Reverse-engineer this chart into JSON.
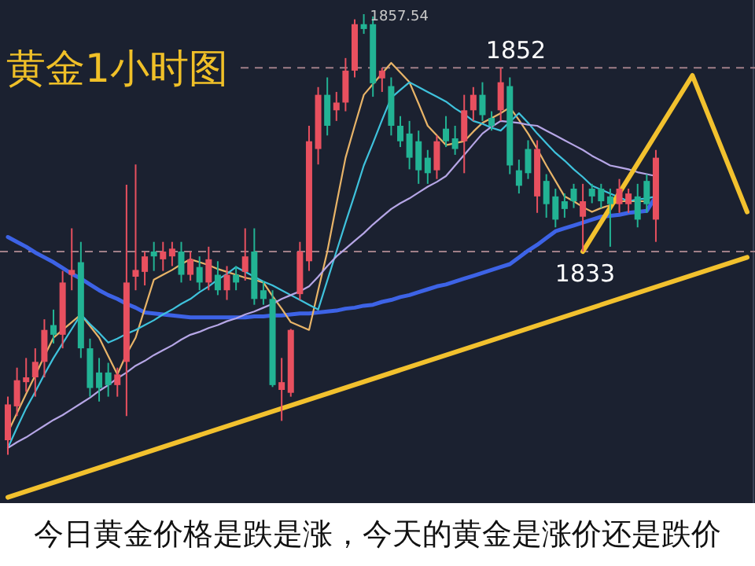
{
  "chart_data": {
    "type": "candlestick",
    "title": "黄金1小时图",
    "categories": [
      null,
      null,
      null,
      null,
      null,
      null,
      null,
      null,
      null,
      null,
      null,
      null,
      null,
      null,
      null,
      null,
      null,
      null,
      null,
      null,
      null,
      null,
      null,
      null,
      null,
      null,
      null,
      null,
      null,
      null,
      null,
      null,
      null,
      null,
      null,
      null,
      null,
      null,
      null,
      null,
      null,
      null,
      null,
      null,
      null,
      null,
      null,
      null,
      null,
      null,
      null,
      null,
      null,
      null,
      null,
      null,
      null,
      null,
      null,
      null,
      null,
      null,
      null,
      null,
      null,
      null,
      null,
      null,
      null,
      null,
      null,
      null,
      null,
      null,
      null,
      null,
      null,
      null,
      null,
      null,
      null,
      null
    ],
    "ohlc": [
      [
        1813.5,
        1818,
        1812,
        1817.2
      ],
      [
        1817,
        1821,
        1816,
        1819.7
      ],
      [
        1819.5,
        1822,
        1818.5,
        1820
      ],
      [
        1820,
        1823,
        1818,
        1821.6
      ],
      [
        1821.6,
        1826,
        1820,
        1824.9
      ],
      [
        1825.4,
        1827,
        1823.5,
        1824.4
      ],
      [
        1824.4,
        1831,
        1823,
        1829.8
      ],
      [
        1830.6,
        1835.4,
        1829,
        1831.1
      ],
      [
        1831.9,
        1834,
        1822,
        1823
      ],
      [
        1823,
        1824,
        1818,
        1818.9
      ],
      [
        1820.5,
        1822,
        1817.5,
        1818.9
      ],
      [
        1820.5,
        1821.5,
        1818,
        1819.2
      ],
      [
        1819.2,
        1821,
        1818,
        1820.3
      ],
      [
        1821.6,
        1839.9,
        1816,
        1829.8
      ],
      [
        1830.4,
        1842,
        1829,
        1831.1
      ],
      [
        1830.9,
        1833,
        1829.5,
        1832.5
      ],
      [
        1833,
        1834,
        1831,
        1832.5
      ],
      [
        1832.2,
        1834,
        1831,
        1833
      ],
      [
        1832.5,
        1834,
        1831.5,
        1833.3
      ],
      [
        1833,
        1834,
        1829.8,
        1830.6
      ],
      [
        1830.6,
        1833,
        1830,
        1832.2
      ],
      [
        1831.4,
        1832.5,
        1829,
        1829.8
      ],
      [
        1829.8,
        1833.5,
        1829,
        1832.2
      ],
      [
        1830.6,
        1832,
        1828.5,
        1829
      ],
      [
        1829,
        1831.5,
        1828,
        1830.6
      ],
      [
        1830.6,
        1831.5,
        1829,
        1829.8
      ],
      [
        1830.9,
        1835.4,
        1830,
        1832.5
      ],
      [
        1833,
        1835.4,
        1827.5,
        1828.1
      ],
      [
        1829,
        1830,
        1827.5,
        1828.1
      ],
      [
        1828.1,
        1829,
        1819,
        1819.2
      ],
      [
        1818.7,
        1822,
        1815.5,
        1819.5
      ],
      [
        1818.4,
        1825,
        1818,
        1824.9
      ],
      [
        1828.6,
        1834,
        1828,
        1833
      ],
      [
        1832,
        1846,
        1831,
        1844.4
      ],
      [
        1843.6,
        1850,
        1842,
        1849.2
      ],
      [
        1849.2,
        1851,
        1845,
        1846
      ],
      [
        1847.6,
        1849.5,
        1846.5,
        1848.4
      ],
      [
        1848.4,
        1853,
        1847.5,
        1851.7
      ],
      [
        1851.7,
        1857,
        1851,
        1856.5
      ],
      [
        1856.5,
        1857.54,
        1855.5,
        1856
      ],
      [
        1856.5,
        1857.3,
        1849,
        1850.4
      ],
      [
        1850.9,
        1852,
        1849.5,
        1851.7
      ],
      [
        1850.1,
        1851,
        1845,
        1846
      ],
      [
        1846,
        1847,
        1843.8,
        1844.4
      ],
      [
        1845.2,
        1846.5,
        1841.5,
        1842.7
      ],
      [
        1844.4,
        1845.5,
        1840,
        1841.4
      ],
      [
        1842.7,
        1843.5,
        1840,
        1841.1
      ],
      [
        1841.4,
        1845,
        1840.5,
        1844.4
      ],
      [
        1845.7,
        1847,
        1843.8,
        1844.4
      ],
      [
        1844.7,
        1846,
        1843,
        1843.6
      ],
      [
        1844.4,
        1849.2,
        1841.1,
        1847.6
      ],
      [
        1847.6,
        1850,
        1846.5,
        1849.2
      ],
      [
        1849.2,
        1850.5,
        1846.5,
        1847.1
      ],
      [
        1846.8,
        1847.5,
        1845.5,
        1846
      ],
      [
        1847.6,
        1852,
        1846.5,
        1850.5
      ],
      [
        1850.1,
        1851,
        1841,
        1841.9
      ],
      [
        1841.4,
        1842.5,
        1839,
        1839.8
      ],
      [
        1843.6,
        1844.5,
        1840.5,
        1841.1
      ],
      [
        1838.7,
        1844.5,
        1837,
        1843.6
      ],
      [
        1840.3,
        1841,
        1836.5,
        1837.9
      ],
      [
        1838.7,
        1839.5,
        1835.5,
        1836.3
      ],
      [
        1838.2,
        1839,
        1836.5,
        1837.4
      ],
      [
        1839.5,
        1840,
        1837.5,
        1838.2
      ],
      [
        1836.6,
        1840,
        1833,
        1838.2
      ],
      [
        1839.5,
        1840,
        1838,
        1838.7
      ],
      [
        1839.5,
        1840,
        1837.5,
        1838.2
      ],
      [
        1838.7,
        1839.5,
        1833.5,
        1837.9
      ],
      [
        1837.9,
        1840.5,
        1837,
        1839.5
      ],
      [
        1837.9,
        1839.5,
        1837,
        1839
      ],
      [
        1838.7,
        1840,
        1835.5,
        1836.3
      ],
      [
        1840.3,
        1841,
        1837,
        1837.9
      ],
      [
        1836.3,
        1843.5,
        1834,
        1842.7
      ],
      null,
      null,
      null,
      null,
      null,
      null,
      null,
      null,
      null,
      null
    ],
    "colors": [
      "#e8505f",
      "#e8505f",
      "#e8505f",
      "#e8505f",
      "#e8505f",
      "#22b394",
      "#e8505f",
      "#e8505f",
      "#22b394",
      "#22b394",
      "#22b394",
      "#22b394",
      "#e8505f",
      "#e8505f",
      "#e8505f",
      "#e8505f",
      "#22b394",
      "#e8505f",
      "#e8505f",
      "#22b394",
      "#e8505f",
      "#22b394",
      "#e8505f",
      "#22b394",
      "#e8505f",
      "#22b394",
      "#e8505f",
      "#22b394",
      "#22b394",
      "#22b394",
      "#e8505f",
      "#e8505f",
      "#e8505f",
      "#e8505f",
      "#e8505f",
      "#22b394",
      "#e8505f",
      "#e8505f",
      "#e8505f",
      "#22b394",
      "#22b394",
      "#e8505f",
      "#22b394",
      "#22b394",
      "#22b394",
      "#22b394",
      "#22b394",
      "#e8505f",
      "#22b394",
      "#22b394",
      "#e8505f",
      "#e8505f",
      "#22b394",
      "#22b394",
      "#e8505f",
      "#22b394",
      "#22b394",
      "#22b394",
      "#e8505f",
      "#22b394",
      "#22b394",
      "#22b394",
      "#22b394",
      "#e8505f",
      "#22b394",
      "#22b394",
      "#22b394",
      "#e8505f",
      "#e8505f",
      "#22b394",
      "#22b394",
      "#e8505f",
      null,
      null,
      null,
      null,
      null,
      null,
      null,
      null,
      null,
      null
    ],
    "series": [
      {
        "type": "line",
        "color": "#3d63e6",
        "values": [
          1834.5,
          1834.0,
          1833.5,
          1832.9,
          1832.4,
          1831.9,
          1831.3,
          1830.7,
          1830.2,
          1829.6,
          1829.0,
          1828.5,
          1828.1,
          1827.6,
          1827.2,
          1826.7,
          1826.6,
          1826.5,
          1826.4,
          1826.3,
          1826.2,
          1826.2,
          1826.2,
          1826.2,
          1826.2,
          1826.2,
          1826.2,
          1826.3,
          1826.3,
          1826.4,
          1826.4,
          1826.5,
          1826.6,
          1826.6,
          1826.7,
          1826.8,
          1826.9,
          1827.1,
          1827.2,
          1827.4,
          1827.5,
          1827.8,
          1828.0,
          1828.3,
          1828.5,
          1828.8,
          1829.1,
          1829.4,
          1829.6,
          1829.9,
          1830.2,
          1830.5,
          1830.8,
          1831.1,
          1831.4,
          1831.7,
          1832.4,
          1833.1,
          1833.7,
          1834.4,
          1835.1,
          1835.4,
          1835.7,
          1836.0,
          1836.3,
          1836.6,
          1836.7,
          1836.8,
          1837.0,
          1837.1,
          1837.2,
          1838.7,
          null,
          null,
          null,
          null,
          null,
          null,
          null,
          null,
          null,
          null
        ]
      },
      {
        "type": "line",
        "color": "#e8b468",
        "values": [
          1814.3,
          1816.3,
          1818.3,
          1820.2,
          1822.2,
          1824.1,
          1824.9,
          1825.7,
          1826.5,
          1825.3,
          1824.1,
          1822.2,
          1820.3,
          1822.4,
          1824.1,
          1827.1,
          1830.1,
          1830.6,
          1831.1,
          1831.7,
          1832.2,
          1831.9,
          1831.6,
          1831.2,
          1830.9,
          1830.6,
          1830.3,
          1830.1,
          1829.8,
          1828.4,
          1827.1,
          1825.7,
          1825.3,
          1824.9,
          1829.0,
          1833.0,
          1837.9,
          1842.7,
          1846.0,
          1849.2,
          1850.3,
          1851.4,
          1852.5,
          1851.5,
          1850.5,
          1848.3,
          1846.0,
          1845.0,
          1844.0,
          1844.2,
          1844.4,
          1845.4,
          1846.3,
          1846.8,
          1847.3,
          1847.9,
          1846.6,
          1845.2,
          1843.6,
          1841.9,
          1840.3,
          1838.7,
          1838.2,
          1837.6,
          1837.1,
          1837.5,
          1837.8,
          1838.2,
          1838.2,
          1838.2,
          1838.2,
          null,
          null,
          null,
          null,
          null,
          null,
          null,
          null,
          null,
          null,
          null
        ]
      },
      {
        "type": "line",
        "color": "#3fc2dc",
        "values": [
          1812.7,
          1814.8,
          1816.8,
          1818.5,
          1820.3,
          1822.0,
          1823.5,
          1825.0,
          1826.5,
          1825.5,
          1824.6,
          1823.6,
          1824.0,
          1824.5,
          1824.9,
          1825.4,
          1825.9,
          1826.5,
          1827.0,
          1827.6,
          1828.1,
          1828.8,
          1829.4,
          1830.1,
          1830.7,
          1831.4,
          1830.9,
          1830.4,
          1829.9,
          1829.5,
          1829.0,
          1828.5,
          1828.0,
          1827.5,
          1827.0,
          1830.0,
          1833.0,
          1836.0,
          1838.9,
          1841.9,
          1844.2,
          1846.6,
          1848.9,
          1849.7,
          1850.5,
          1850.0,
          1849.5,
          1849.0,
          1848.5,
          1847.8,
          1847.2,
          1846.5,
          1846.2,
          1845.8,
          1845.5,
          1846.4,
          1847.3,
          1846.3,
          1845.2,
          1844.2,
          1843.2,
          1842.4,
          1841.5,
          1840.7,
          1839.8,
          1839.4,
          1839.0,
          1838.6,
          1838.2,
          1838.4,
          1838.5,
          1838.7,
          null,
          null,
          null,
          null,
          null,
          null,
          null,
          null,
          null,
          null
        ]
      },
      {
        "type": "line",
        "color": "#b6a6e6",
        "values": [
          1812.7,
          1813.3,
          1813.8,
          1814.4,
          1815.0,
          1815.6,
          1816.1,
          1816.7,
          1817.3,
          1817.9,
          1818.6,
          1819.2,
          1819.9,
          1820.5,
          1821.2,
          1821.7,
          1822.3,
          1822.8,
          1823.3,
          1823.9,
          1824.4,
          1824.7,
          1825.1,
          1825.4,
          1825.8,
          1826.1,
          1826.5,
          1826.8,
          1827.2,
          1827.6,
          1828.1,
          1828.5,
          1828.9,
          1829.4,
          1830.4,
          1831.5,
          1832.5,
          1833.3,
          1834.1,
          1834.9,
          1835.8,
          1836.6,
          1837.4,
          1838.0,
          1838.5,
          1839.1,
          1839.7,
          1840.2,
          1840.8,
          1841.9,
          1843.0,
          1844.1,
          1845.2,
          1845.9,
          1846.5,
          1846.4,
          1846.3,
          1846.1,
          1846.0,
          1845.5,
          1845.0,
          1844.5,
          1844.0,
          1843.5,
          1842.9,
          1842.4,
          1841.9,
          1841.7,
          1841.5,
          1841.2,
          1841.0,
          1840.8,
          null,
          null,
          null,
          null,
          null,
          null,
          null,
          null,
          null,
          null
        ]
      },
      {
        "type": "line",
        "color": "#f2c12e",
        "values": [
          1807.6,
          null,
          null,
          null,
          null,
          null,
          null,
          null,
          null,
          null,
          null,
          null,
          null,
          null,
          null,
          null,
          null,
          null,
          null,
          null,
          null,
          null,
          null,
          null,
          null,
          null,
          null,
          null,
          null,
          null,
          null,
          null,
          null,
          null,
          null,
          null,
          null,
          null,
          null,
          null,
          null,
          null,
          null,
          null,
          null,
          null,
          null,
          null,
          null,
          null,
          null,
          null,
          null,
          null,
          null,
          null,
          null,
          null,
          null,
          null,
          null,
          null,
          null,
          null,
          null,
          null,
          null,
          null,
          null,
          null,
          null,
          null,
          null,
          null,
          null,
          null,
          null,
          null,
          null,
          null,
          null,
          1832.4
        ]
      },
      {
        "type": "line",
        "color": "#f2c12e",
        "values": [
          null,
          null,
          null,
          null,
          null,
          null,
          null,
          null,
          null,
          null,
          null,
          null,
          null,
          null,
          null,
          null,
          null,
          null,
          null,
          null,
          null,
          null,
          null,
          null,
          null,
          null,
          null,
          null,
          null,
          null,
          null,
          null,
          null,
          null,
          null,
          null,
          null,
          null,
          null,
          null,
          null,
          null,
          null,
          null,
          null,
          null,
          null,
          null,
          null,
          null,
          null,
          null,
          null,
          null,
          null,
          null,
          null,
          null,
          null,
          null,
          null,
          null,
          null,
          1833.0,
          null,
          null,
          null,
          null,
          null,
          null,
          null,
          null,
          null,
          null,
          null,
          1851.2,
          null,
          null,
          null,
          null,
          null,
          1837.1
        ]
      }
    ],
    "ylim": [
      1807,
      1859
    ],
    "ref_lines": [
      {
        "axis": "y",
        "value": 1852,
        "label": "1852",
        "color": "#a07f88",
        "line_style": "dashed"
      },
      {
        "axis": "y",
        "value": 1833,
        "label": "1833",
        "color": "#a07f88",
        "line_style": "dashed"
      }
    ],
    "annotations": [
      "1857.54",
      "今日黄金价格是跌是涨，今天的黄金是涨价还是跌价"
    ]
  }
}
